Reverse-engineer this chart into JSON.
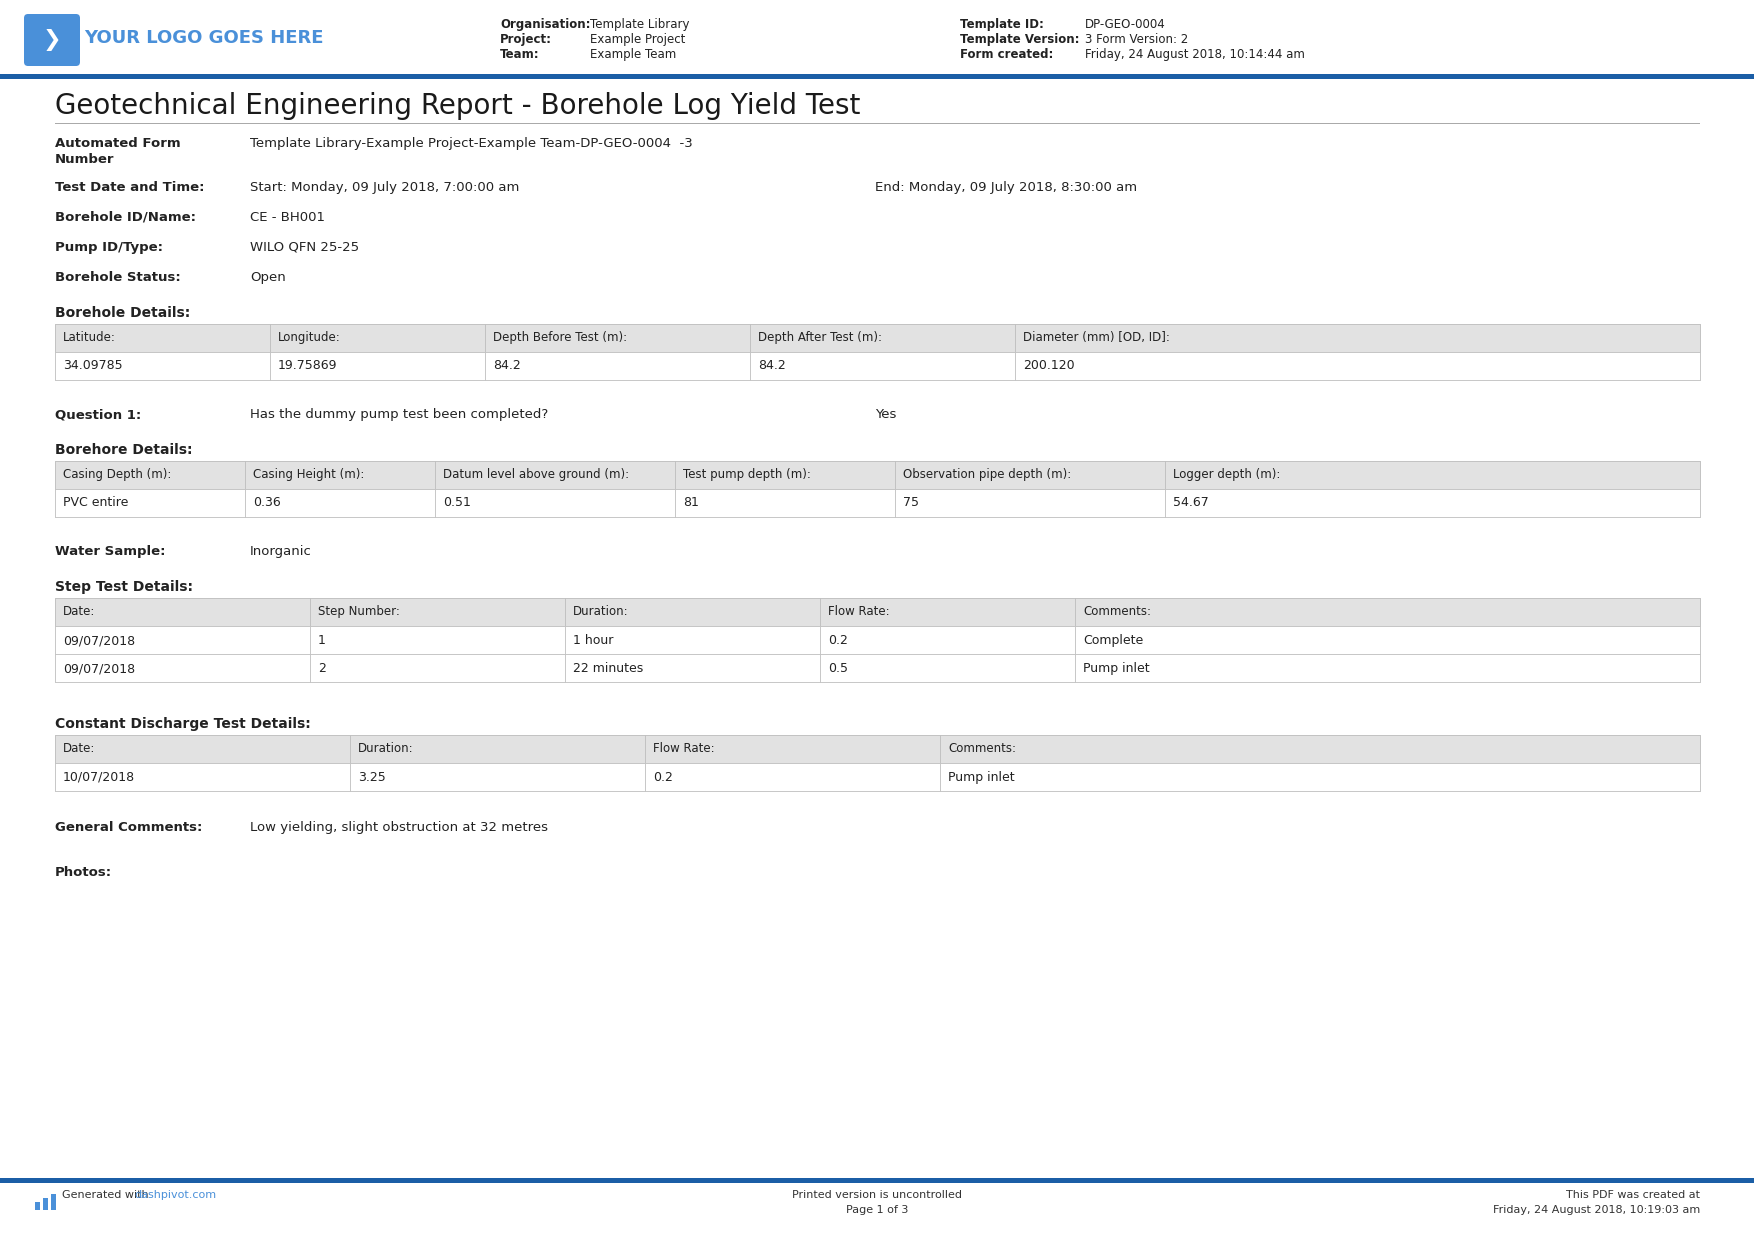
{
  "title": "Geotechnical Engineering Report - Borehole Log Yield Test",
  "logo_text": "YOUR LOGO GOES HERE",
  "org_label": "Organisation:",
  "org_value": "Template Library",
  "proj_label": "Project:",
  "proj_value": "Example Project",
  "team_label": "Team:",
  "team_value": "Example Team",
  "tpl_id_label": "Template ID:",
  "tpl_id_value": "DP-GEO-0004",
  "tpl_ver_label": "Template Version:",
  "tpl_ver_value": "3 Form Version: 2",
  "form_created_label": "Form created:",
  "form_created_value": "Friday, 24 August 2018, 10:14:44 am",
  "afn_label": "Automated Form\nNumber",
  "afn_value": "Template Library-Example Project-Example Team-DP-GEO-0004  -3",
  "tdat_label": "Test Date and Time:",
  "tdat_start": "Start: Monday, 09 July 2018, 7:00:00 am",
  "tdat_end": "End: Monday, 09 July 2018, 8:30:00 am",
  "bh_id_label": "Borehole ID/Name:",
  "bh_id_value": "CE - BH001",
  "pump_label": "Pump ID/Type:",
  "pump_value": "WILO QFN 25-25",
  "bh_status_label": "Borehole Status:",
  "bh_status_value": "Open",
  "bh_details_label": "Borehole Details:",
  "bh_table_headers": [
    "Latitude:",
    "Longitude:",
    "Depth Before Test (m):",
    "Depth After Test (m):",
    "Diameter (mm) [OD, ID]:"
  ],
  "bh_table_data": [
    "34.09785",
    "19.75869",
    "84.2",
    "84.2",
    "200.120"
  ],
  "q1_label": "Question 1:",
  "q1_text": "Has the dummy pump test been completed?",
  "q1_answer": "Yes",
  "bh2_label": "Borehore Details:",
  "bh2_headers": [
    "Casing Depth (m):",
    "Casing Height (m):",
    "Datum level above ground (m):",
    "Test pump depth (m):",
    "Observation pipe depth (m):",
    "Logger depth (m):"
  ],
  "bh2_data": [
    "PVC entire",
    "0.36",
    "0.51",
    "81",
    "75",
    "54.67"
  ],
  "ws_label": "Water Sample:",
  "ws_value": "Inorganic",
  "st_label": "Step Test Details:",
  "st_headers": [
    "Date:",
    "Step Number:",
    "Duration:",
    "Flow Rate:",
    "Comments:"
  ],
  "st_data": [
    [
      "09/07/2018",
      "1",
      "1 hour",
      "0.2",
      "Complete"
    ],
    [
      "09/07/2018",
      "2",
      "22 minutes",
      "0.5",
      "Pump inlet"
    ]
  ],
  "cd_label": "Constant Discharge Test Details:",
  "cd_headers": [
    "Date:",
    "Duration:",
    "Flow Rate:",
    "Comments:"
  ],
  "cd_data": [
    [
      "10/07/2018",
      "3.25",
      "0.2",
      "Pump inlet"
    ]
  ],
  "gc_label": "General Comments:",
  "gc_value": "Low yielding, slight obstruction at 32 metres",
  "photos_label": "Photos:",
  "footer_left1": "Generated with ",
  "footer_left2": "dashpivot.com",
  "footer_center": "Printed version is uncontrolled\nPage 1 of 3",
  "footer_right": "This PDF was created at\nFriday, 24 August 2018, 10:19:03 am",
  "blue": "#4a90d9",
  "dark_blue": "#1b5ea6",
  "tbl_hdr_bg": "#e2e2e2",
  "tbl_border": "#bbbbbb",
  "white": "#ffffff",
  "black": "#222222",
  "gray": "#555555"
}
